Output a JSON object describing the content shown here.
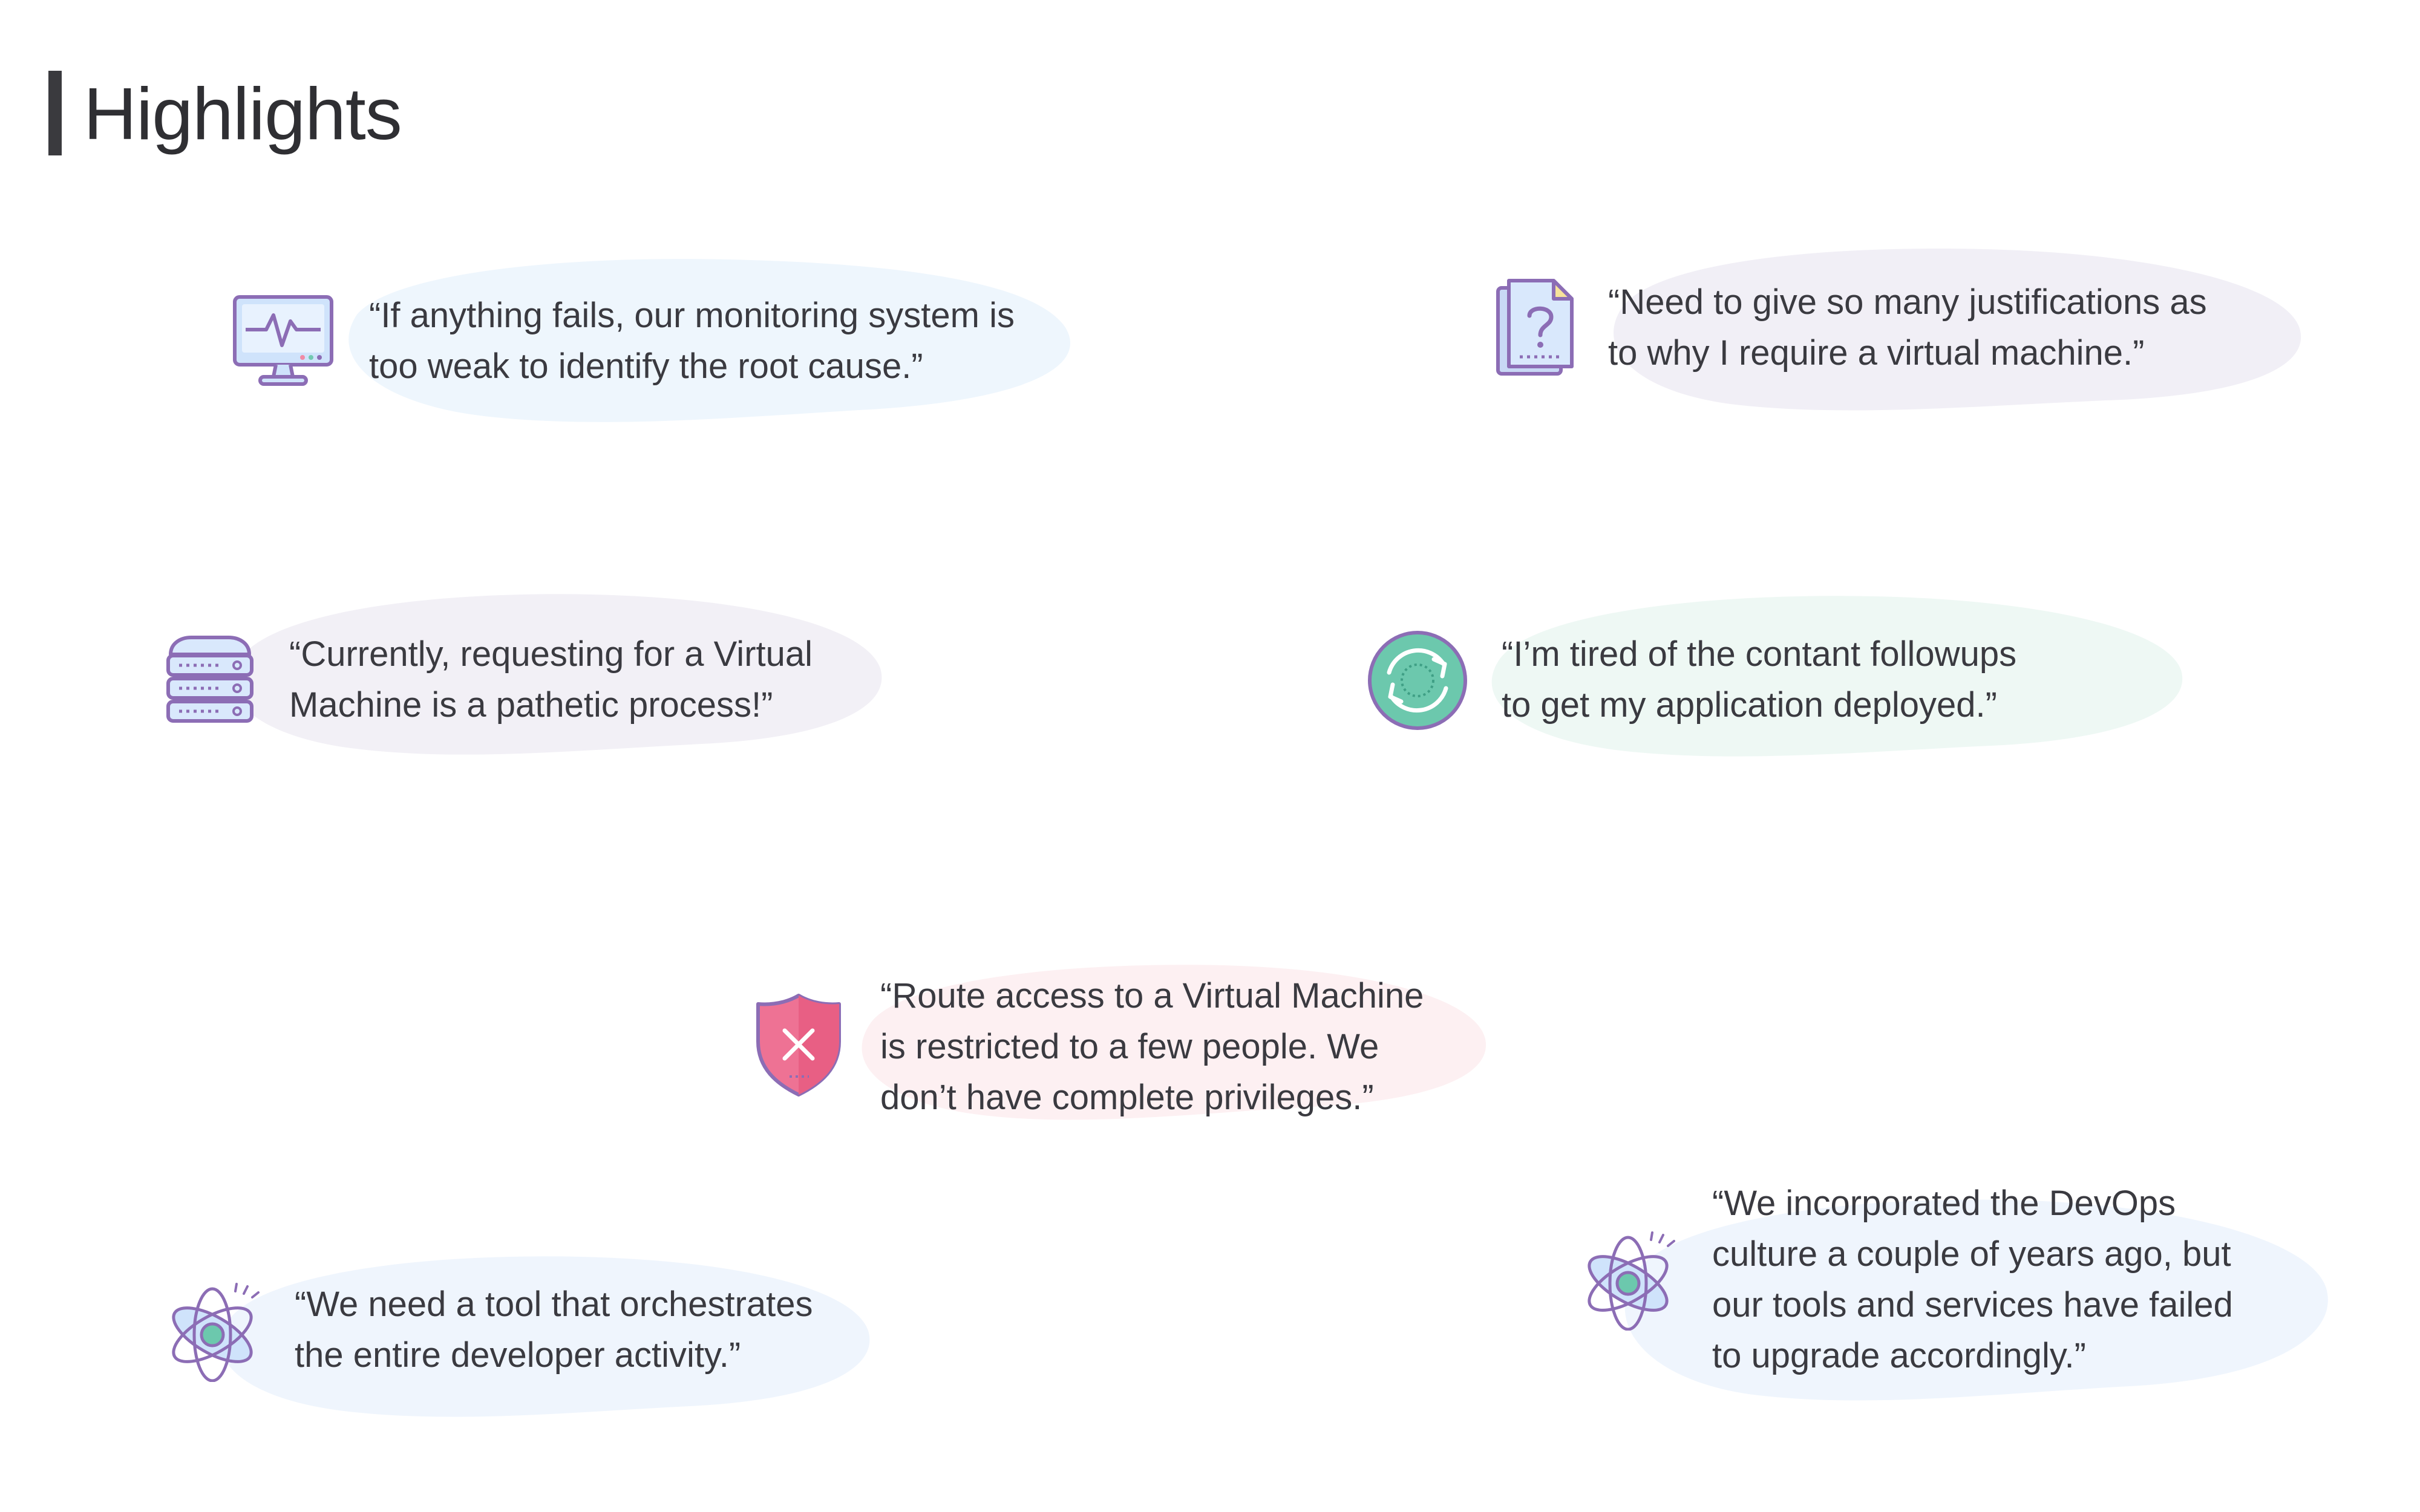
{
  "page": {
    "title": "Highlights"
  },
  "quotes": [
    {
      "id": "monitoring",
      "icon": "monitor-heartbeat-icon",
      "lines": [
        "“If anything fails, our monitoring system is",
        "too weak to identify the root cause.”"
      ],
      "bg_color": "#eef6fd"
    },
    {
      "id": "justifications",
      "icon": "document-question-icon",
      "lines": [
        "“Need to give so many justifications as",
        "to why I require a virtual machine.”"
      ],
      "bg_color": "#f1eff6"
    },
    {
      "id": "vm-request",
      "icon": "server-rack-icon",
      "lines": [
        "“Currently, requesting for a Virtual",
        "Machine is a pathetic process!”"
      ],
      "bg_color": "#f2f0f6"
    },
    {
      "id": "followups",
      "icon": "sync-cycle-icon",
      "lines": [
        "“I’m tired of the contant followups",
        "to get my application deployed.”"
      ],
      "bg_color": "#eef8f4"
    },
    {
      "id": "access",
      "icon": "shield-x-icon",
      "lines": [
        "“Route access to a Virtual Machine",
        "is restricted to a few people. We",
        "don’t have complete privileges.”"
      ],
      "bg_color": "#fdf0f2"
    },
    {
      "id": "orchestration",
      "icon": "atom-icon",
      "lines": [
        "“We need a tool that orchestrates",
        "the entire developer activity.”"
      ],
      "bg_color": "#eff5fd"
    },
    {
      "id": "devops",
      "icon": "atom-icon",
      "lines": [
        "“We incorporated the DevOps",
        "culture a couple of years ago, but",
        "our tools and services have failed",
        "to upgrade accordingly.”"
      ],
      "bg_color": "#eff5fd"
    }
  ]
}
